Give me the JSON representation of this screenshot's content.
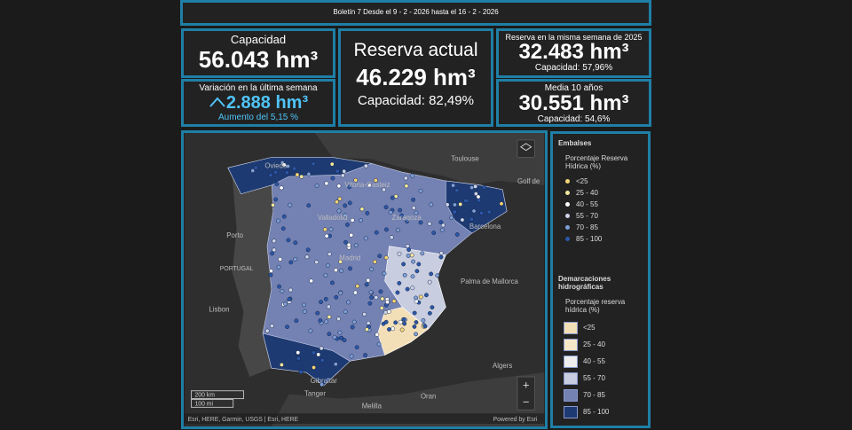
{
  "header": {
    "bulletin": "Boletín 7 Desde el 9 - 2 - 2026 hasta el 16 - 2 - 2026"
  },
  "capacity": {
    "title": "Capacidad",
    "value": "56.043 hm³"
  },
  "variation": {
    "title": "Variación en la última semana",
    "value": "2.888 hm³",
    "note": "Aumento del 5,15 %"
  },
  "current": {
    "title": "Reserva actual",
    "value": "46.229 hm³",
    "note": "Capacidad: 82,49%"
  },
  "last_year": {
    "title": "Reserva en la misma semana de 2025",
    "value": "32.483 hm³",
    "note": "Capacidad: 57,96%"
  },
  "avg10": {
    "title": "Media 10 años",
    "value": "30.551 hm³",
    "note": "Capacidad: 54,6%"
  },
  "map": {
    "labels": [
      "Toulouse",
      "Golf de",
      "Oviedo",
      "Vitoria-Gasteiz",
      "Zaragoza",
      "Valladolid",
      "Barcelona",
      "Porto",
      "PORTUGAL",
      "Madrid",
      "Palma de Mallorca",
      "Lisbon",
      "Algers",
      "Gibraltar",
      "Tanger",
      "Melilla",
      "Oran"
    ],
    "scale_km": "200 km",
    "scale_mi": "100 mi",
    "attribution": "Esri, HERE, Garmin, USGS | Esri, HERE",
    "powered": "Powered by Esri",
    "zoom_in": "+",
    "zoom_out": "−"
  },
  "legend": {
    "reservoirs": {
      "title": "Embalses",
      "subtitle": "Porcentaje Reserva Hídrica (%)",
      "classes": [
        "<25",
        "25 - 40",
        "40 - 55",
        "55 - 70",
        "70 - 85",
        "85 - 100"
      ]
    },
    "basins": {
      "title": "Demarcaciones hidrográficas",
      "subtitle": "Porcentaje reserva hídrica (%)",
      "classes": [
        "<25",
        "25 - 40",
        "40 - 55",
        "55 - 70",
        "70 - 85",
        "85 - 100"
      ]
    }
  }
}
